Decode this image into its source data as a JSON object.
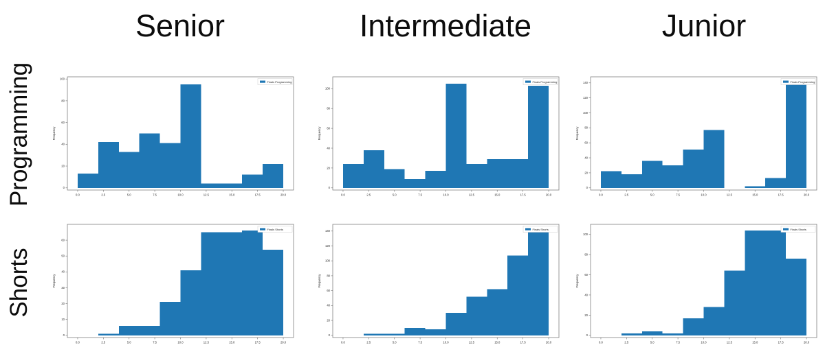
{
  "page": {
    "background": "#ffffff"
  },
  "columns": [
    "Senior",
    "Intermediate",
    "Junior"
  ],
  "rows": [
    "Programming",
    "Shorts"
  ],
  "colors": {
    "bar": "#1f77b4",
    "frame": "#7f7f7f",
    "tick_text": "#262626",
    "title_text": "#0c0c0c",
    "legend_border": "#cccccc"
  },
  "axis": {
    "ylabel": "Frequency",
    "xtick_labels": [
      "0.0",
      "2.5",
      "5.0",
      "7.5",
      "10.0",
      "12.5",
      "15.0",
      "17.5",
      "20.0"
    ],
    "xlim": [
      -1,
      21
    ]
  },
  "chart_data": [
    {
      "type": "bar",
      "subtype": "histogram",
      "column": "Senior",
      "row": "Programming",
      "legend": "Finals Programming",
      "ylabel": "Frequency",
      "bin_edges": [
        0,
        2,
        4,
        6,
        8,
        10,
        12,
        14,
        16,
        18,
        20
      ],
      "values": [
        13,
        42,
        33,
        50,
        41,
        95,
        4,
        4,
        12,
        22
      ],
      "yticks": [
        0,
        20,
        40,
        60,
        80,
        100
      ],
      "ylim": [
        0,
        102
      ],
      "xticks": [
        0,
        2.5,
        5,
        7.5,
        10,
        12.5,
        15,
        17.5,
        20
      ]
    },
    {
      "type": "bar",
      "subtype": "histogram",
      "column": "Intermediate",
      "row": "Programming",
      "legend": "Finals Programming",
      "ylabel": "Frequency",
      "bin_edges": [
        0,
        2,
        4,
        6,
        8,
        10,
        12,
        14,
        16,
        18,
        20
      ],
      "values": [
        24,
        38,
        19,
        9,
        17,
        105,
        24,
        29,
        29,
        103
      ],
      "yticks": [
        0,
        20,
        40,
        60,
        80,
        100
      ],
      "ylim": [
        0,
        112
      ],
      "xticks": [
        0,
        2.5,
        5,
        7.5,
        10,
        12.5,
        15,
        17.5,
        20
      ]
    },
    {
      "type": "bar",
      "subtype": "histogram",
      "column": "Junior",
      "row": "Programming",
      "legend": "Finals Programming",
      "ylabel": "Frequency",
      "bin_edges": [
        0,
        2,
        4,
        6,
        8,
        10,
        12,
        14,
        16,
        18,
        20
      ],
      "values": [
        22,
        18,
        36,
        30,
        51,
        77,
        0,
        2,
        13,
        138
      ],
      "yticks": [
        0,
        20,
        40,
        60,
        80,
        100,
        120,
        140
      ],
      "ylim": [
        0,
        148
      ],
      "xticks": [
        0,
        2.5,
        5,
        7.5,
        10,
        12.5,
        15,
        17.5,
        20
      ]
    },
    {
      "type": "bar",
      "subtype": "histogram",
      "column": "Senior",
      "row": "Shorts",
      "legend": "Finals Shorts",
      "ylabel": "Frequency",
      "bin_edges": [
        0,
        2,
        4,
        6,
        8,
        10,
        12,
        14,
        16,
        18,
        20
      ],
      "values": [
        0,
        1,
        6,
        6,
        21,
        41,
        65,
        65,
        66,
        54
      ],
      "yticks": [
        0,
        10,
        20,
        30,
        40,
        50,
        60
      ],
      "ylim": [
        0,
        70
      ],
      "xticks": [
        0,
        2.5,
        5,
        7.5,
        10,
        12.5,
        15,
        17.5,
        20
      ]
    },
    {
      "type": "bar",
      "subtype": "histogram",
      "column": "Intermediate",
      "row": "Shorts",
      "legend": "Finals Shorts",
      "ylabel": "Frequency",
      "bin_edges": [
        0,
        2,
        4,
        6,
        8,
        10,
        12,
        14,
        16,
        18,
        20
      ],
      "values": [
        0,
        2,
        2,
        10,
        8,
        30,
        52,
        62,
        107,
        142
      ],
      "yticks": [
        0,
        20,
        40,
        60,
        80,
        100,
        120,
        140
      ],
      "ylim": [
        0,
        149
      ],
      "xticks": [
        0,
        2.5,
        5,
        7.5,
        10,
        12.5,
        15,
        17.5,
        20
      ]
    },
    {
      "type": "bar",
      "subtype": "histogram",
      "column": "Junior",
      "row": "Shorts",
      "legend": "Finals Shorts",
      "ylabel": "Frequency",
      "bin_edges": [
        0,
        2,
        4,
        6,
        8,
        10,
        12,
        14,
        16,
        18,
        20
      ],
      "values": [
        0,
        2,
        4,
        2,
        17,
        28,
        64,
        104,
        104,
        76
      ],
      "yticks": [
        0,
        20,
        40,
        60,
        80,
        100
      ],
      "ylim": [
        0,
        110
      ],
      "xticks": [
        0,
        2.5,
        5,
        7.5,
        10,
        12.5,
        15,
        17.5,
        20
      ]
    }
  ]
}
